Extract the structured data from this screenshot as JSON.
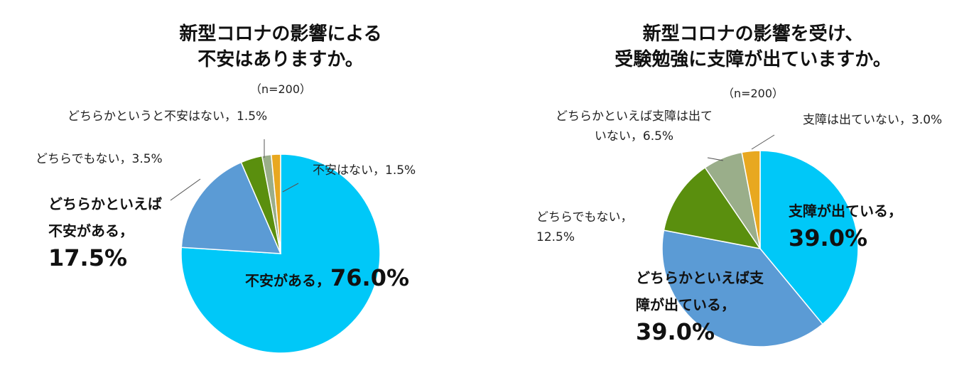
{
  "chart_data": [
    {
      "type": "pie",
      "title": [
        "新型コロナの影響による",
        "不安はありますか。"
      ],
      "subtitle": "（n=200）",
      "label_separator": "，",
      "categories": [
        "不安がある",
        "どちらかといえば不安がある",
        "どちらでもない",
        "どちらかというと不安はない",
        "不安はない"
      ],
      "values": [
        76.0,
        17.5,
        3.5,
        1.5,
        1.5
      ],
      "value_labels": [
        "76.0%",
        "17.5%",
        "3.5%",
        "1.5%",
        "1.5%"
      ],
      "colors": [
        "#00c8f8",
        "#5b9bd5",
        "#5a8f0e",
        "#9aae8a",
        "#e8a820"
      ]
    },
    {
      "type": "pie",
      "title": [
        "新型コロナの影響を受け、",
        "受験勉強に支障が出ていますか。"
      ],
      "subtitle": "（n=200）",
      "label_separator": "，",
      "categories": [
        "支障が出ている",
        "どちらかといえば支障が出ている",
        "どちらでもない",
        "どちらかといえば支障は出ていない",
        "支障は出ていない"
      ],
      "values": [
        39.0,
        39.0,
        12.5,
        6.5,
        3.0
      ],
      "value_labels": [
        "39.0%",
        "39.0%",
        "12.5%",
        "6.5%",
        "3.0%"
      ],
      "colors": [
        "#00c8f8",
        "#5b9bd5",
        "#5a8f0e",
        "#9aae8a",
        "#e8a820"
      ]
    }
  ]
}
